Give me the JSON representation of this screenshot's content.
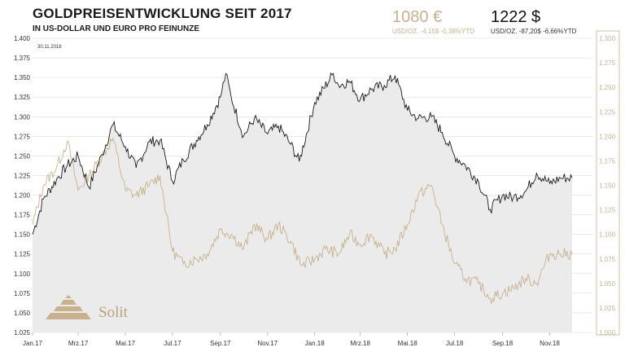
{
  "header": {
    "title": "GOLDPREISENTWICKLUNG SEIT 2017",
    "subtitle": "IN US-DOLLAR UND EURO PRO FEINUNZE",
    "eur_price": "1080 €",
    "eur_change": "USD/OZ. -4,15$ -0,38%YTD",
    "usd_price": "1222 $",
    "usd_change": "USD/OZ. -87,20$ -6,66%YTD"
  },
  "logo": {
    "text": "Solit"
  },
  "colors": {
    "usd_line": "#1a1a1a",
    "eur_line": "#c8b18c",
    "area": "#ebebeb",
    "grid": "#dcdcdc",
    "right_axis": "#c8b18c"
  },
  "chart_data": {
    "type": "line",
    "date_label": "30.11.2018",
    "x_tick_labels": [
      "Jan.17",
      "Mrz.17",
      "Mai.17",
      "Jul.17",
      "Sep.17",
      "Nov.17",
      "Jan.18",
      "Mrz.18",
      "Mai.18",
      "Jul.18",
      "Sep.18",
      "Nov.18"
    ],
    "left_axis": {
      "min": 1025,
      "max": 1400,
      "ticks": [
        "1.025",
        "1.050",
        "1.075",
        "1.100",
        "1.125",
        "1.150",
        "1.175",
        "1.200",
        "1.225",
        "1.250",
        "1.275",
        "1.300",
        "1.325",
        "1.350",
        "1.375",
        "1.400"
      ]
    },
    "right_axis": {
      "min": 1000,
      "max": 1300,
      "ticks": [
        "1.000",
        "1.025",
        "1.050",
        "1.075",
        "1.100",
        "1.125",
        "1.150",
        "1.175",
        "1.200",
        "1.225",
        "1.250",
        "1.275",
        "1.300"
      ]
    },
    "series": [
      {
        "axis": "left",
        "area": true,
        "x": [
          "2017-01-01",
          "2017-01-15",
          "2017-02-01",
          "2017-02-15",
          "2017-03-01",
          "2017-03-15",
          "2017-04-01",
          "2017-04-15",
          "2017-05-01",
          "2017-05-15",
          "2017-06-01",
          "2017-06-15",
          "2017-07-01",
          "2017-07-15",
          "2017-08-01",
          "2017-08-15",
          "2017-09-01",
          "2017-09-08",
          "2017-09-15",
          "2017-10-01",
          "2017-10-15",
          "2017-11-01",
          "2017-11-15",
          "2017-12-01",
          "2017-12-12",
          "2018-01-01",
          "2018-01-25",
          "2018-02-01",
          "2018-02-15",
          "2018-03-01",
          "2018-03-15",
          "2018-04-01",
          "2018-04-15",
          "2018-05-01",
          "2018-05-15",
          "2018-06-01",
          "2018-06-15",
          "2018-07-01",
          "2018-07-15",
          "2018-08-01",
          "2018-08-16",
          "2018-09-01",
          "2018-09-15",
          "2018-10-01",
          "2018-10-15",
          "2018-11-01",
          "2018-11-15",
          "2018-11-30"
        ],
        "values": [
          1150,
          1195,
          1220,
          1238,
          1250,
          1210,
          1252,
          1290,
          1262,
          1235,
          1268,
          1270,
          1218,
          1245,
          1270,
          1290,
          1325,
          1355,
          1325,
          1275,
          1298,
          1278,
          1288,
          1265,
          1243,
          1318,
          1355,
          1340,
          1345,
          1322,
          1335,
          1340,
          1352,
          1308,
          1298,
          1300,
          1280,
          1250,
          1238,
          1217,
          1182,
          1200,
          1197,
          1205,
          1228,
          1215,
          1222,
          1222
        ]
      },
      {
        "axis": "right",
        "x": [
          "2017-01-01",
          "2017-01-15",
          "2017-02-01",
          "2017-02-15",
          "2017-03-01",
          "2017-03-15",
          "2017-04-01",
          "2017-04-15",
          "2017-05-01",
          "2017-05-15",
          "2017-06-01",
          "2017-06-15",
          "2017-07-01",
          "2017-07-15",
          "2017-08-01",
          "2017-08-15",
          "2017-09-01",
          "2017-09-15",
          "2017-10-01",
          "2017-10-15",
          "2017-11-01",
          "2017-11-15",
          "2017-12-01",
          "2017-12-15",
          "2018-01-01",
          "2018-01-15",
          "2018-02-01",
          "2018-02-15",
          "2018-03-01",
          "2018-03-15",
          "2018-04-01",
          "2018-04-15",
          "2018-05-01",
          "2018-05-15",
          "2018-06-01",
          "2018-06-15",
          "2018-07-01",
          "2018-07-15",
          "2018-08-01",
          "2018-08-16",
          "2018-09-01",
          "2018-09-15",
          "2018-10-01",
          "2018-10-15",
          "2018-11-01",
          "2018-11-15",
          "2018-11-30"
        ],
        "values": [
          1110,
          1150,
          1168,
          1195,
          1145,
          1160,
          1180,
          1198,
          1145,
          1140,
          1150,
          1160,
          1083,
          1070,
          1075,
          1080,
          1105,
          1100,
          1085,
          1110,
          1095,
          1110,
          1093,
          1068,
          1075,
          1085,
          1080,
          1100,
          1090,
          1100,
          1080,
          1085,
          1110,
          1140,
          1150,
          1110,
          1070,
          1055,
          1050,
          1035,
          1040,
          1045,
          1055,
          1050,
          1080,
          1080,
          1080
        ]
      }
    ]
  }
}
